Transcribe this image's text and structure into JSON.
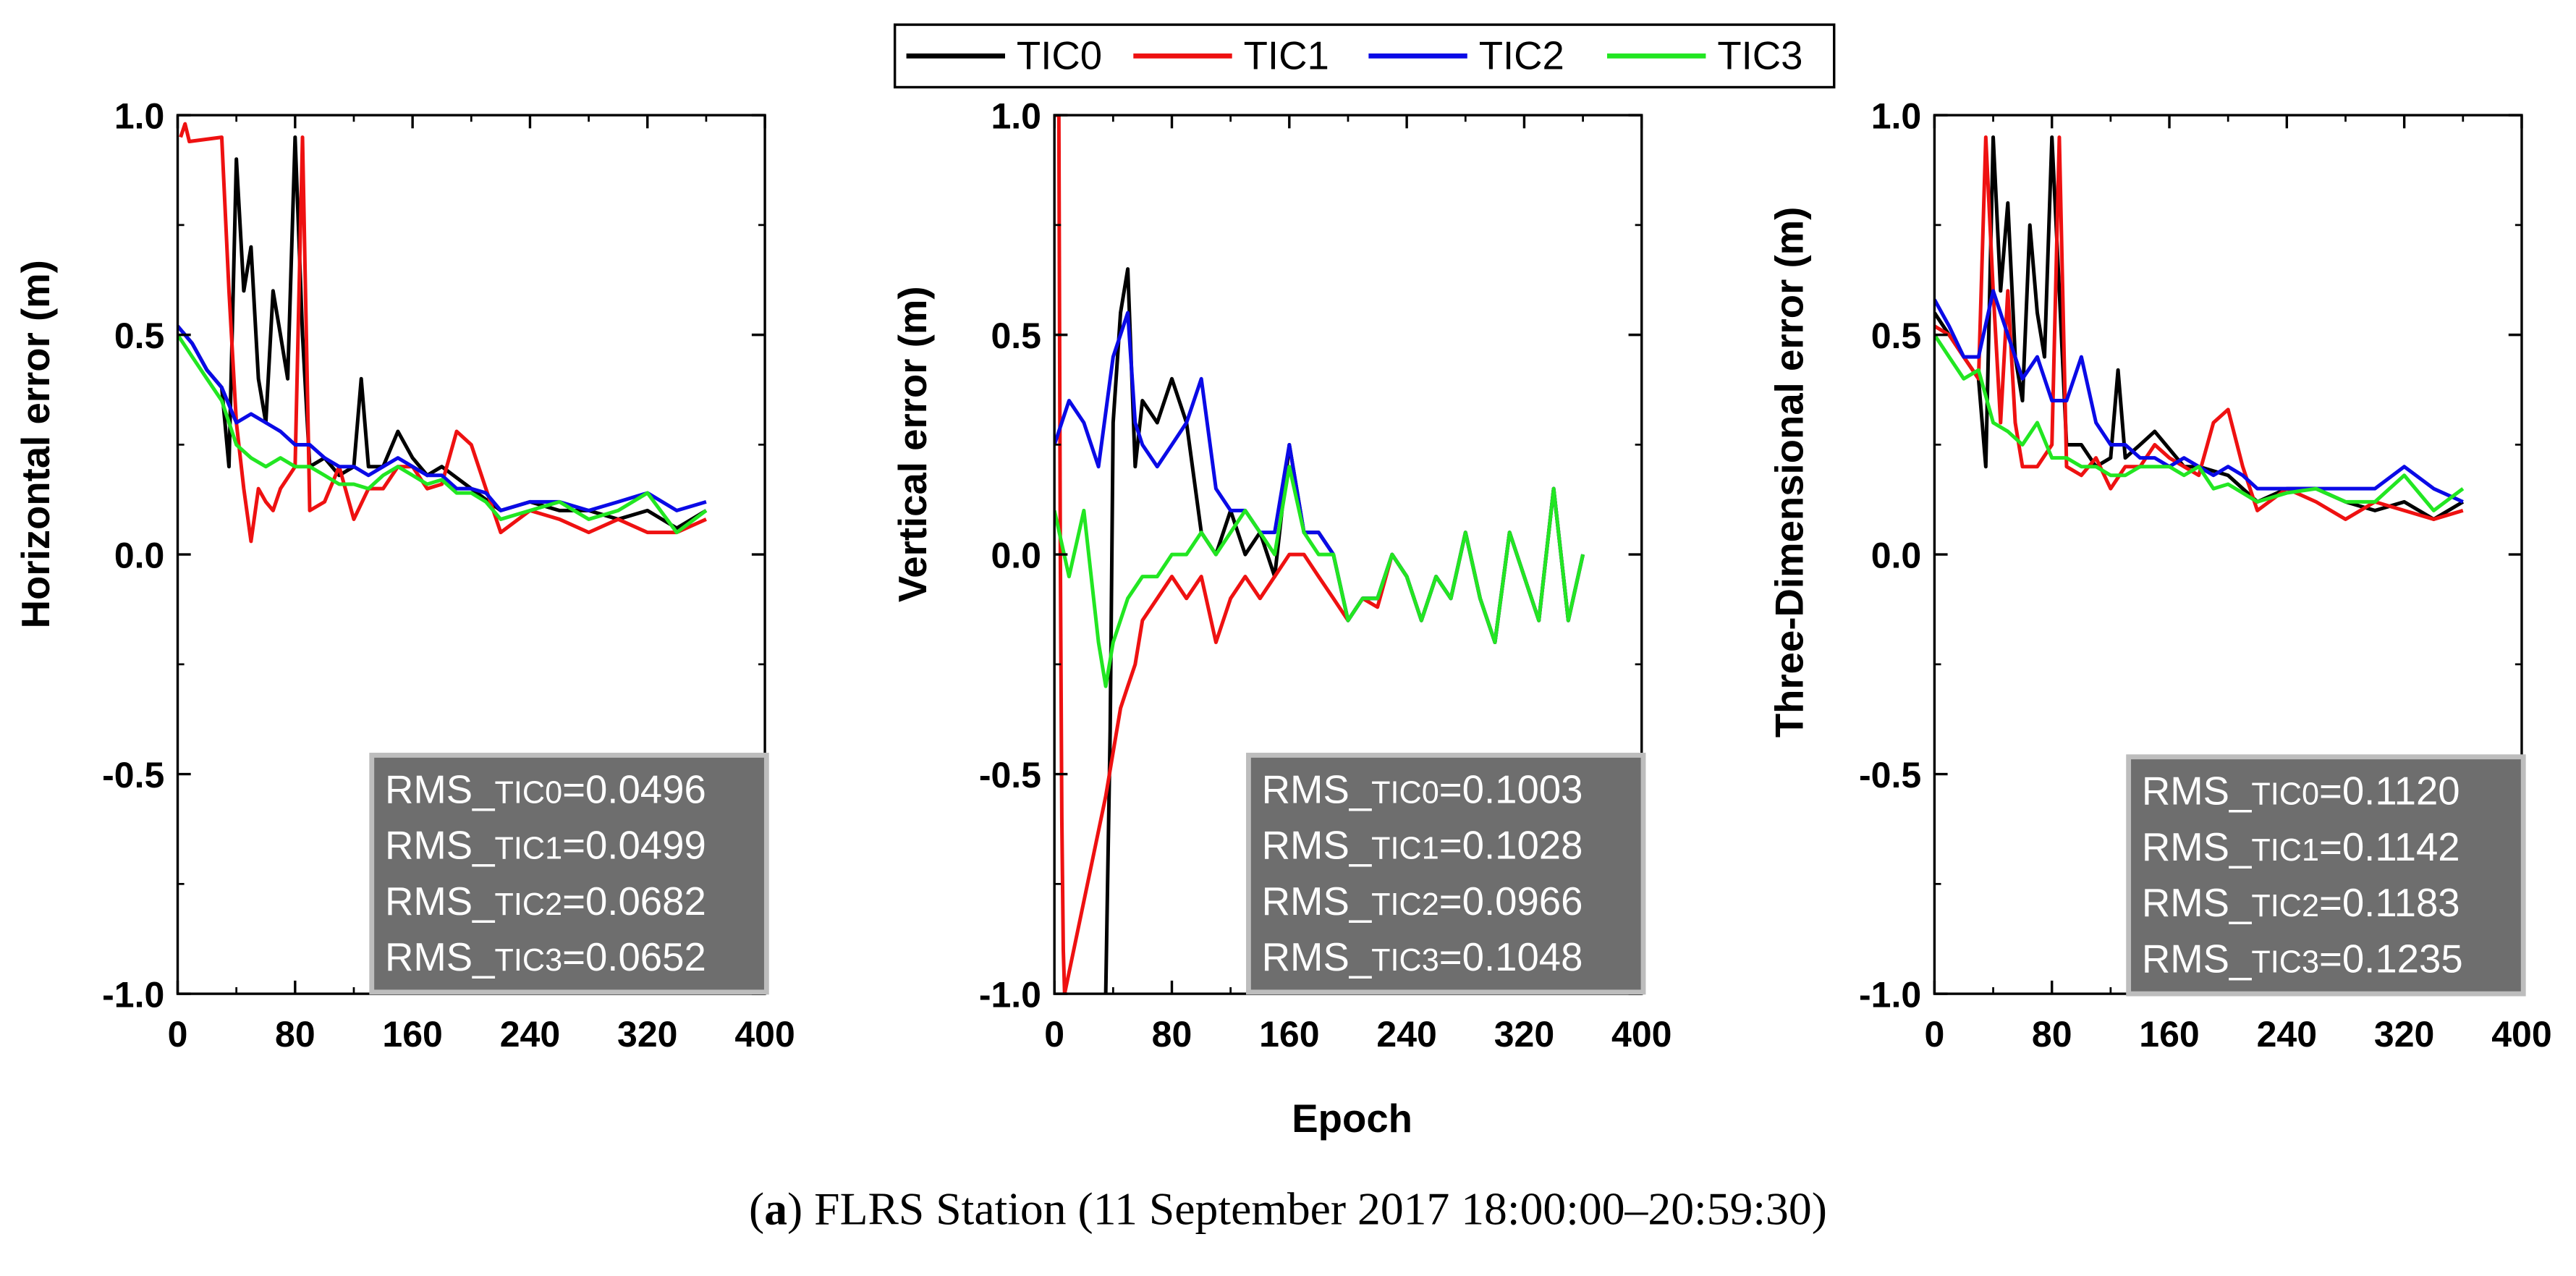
{
  "legend": [
    {
      "label": "TIC0",
      "color": "#000000"
    },
    {
      "label": "TIC1",
      "color": "#ee1111"
    },
    {
      "label": "TIC2",
      "color": "#0a0ae6"
    },
    {
      "label": "TIC3",
      "color": "#22e622"
    }
  ],
  "shared_xlabel": "Epoch",
  "caption": {
    "tag": "a",
    "text": "FLRS Station (11 September 2017 18:00:00–20:59:30)"
  },
  "chart_data": [
    {
      "type": "line",
      "ylabel": "Horizontal error (m)",
      "xlim": [
        0,
        400
      ],
      "ylim": [
        -1.0,
        1.0
      ],
      "xticks": [
        0,
        80,
        160,
        240,
        320,
        400
      ],
      "xtick_labels": [
        "0",
        "80",
        "160",
        "240",
        "320",
        "400"
      ],
      "yticks": [
        1.0,
        0.5,
        0.0,
        -0.5,
        -1.0
      ],
      "ytick_labels": [
        "1.0",
        "0.5",
        "0.0",
        "-0.5",
        "-1.0"
      ],
      "rms": [
        {
          "prefix": "RMS_",
          "sub": "TIC0",
          "value": "=0.0496"
        },
        {
          "prefix": "RMS_",
          "sub": "TIC1",
          "value": "=0.0499"
        },
        {
          "prefix": "RMS_",
          "sub": "TIC2",
          "value": "=0.0682"
        },
        {
          "prefix": "RMS_",
          "sub": "TIC3",
          "value": "=0.0652"
        }
      ],
      "series": [
        {
          "name": "TIC0",
          "x": [
            0,
            10,
            20,
            30,
            35,
            40,
            45,
            50,
            55,
            60,
            65,
            70,
            75,
            80,
            85,
            90,
            100,
            110,
            120,
            125,
            130,
            140,
            150,
            160,
            170,
            180,
            200,
            220,
            240,
            260,
            280,
            300,
            320,
            340,
            360
          ],
          "y": [
            0.52,
            0.48,
            0.42,
            0.38,
            0.2,
            0.9,
            0.6,
            0.7,
            0.4,
            0.3,
            0.6,
            0.5,
            0.4,
            0.95,
            0.5,
            0.2,
            0.22,
            0.18,
            0.2,
            0.4,
            0.2,
            0.2,
            0.28,
            0.22,
            0.18,
            0.2,
            0.15,
            0.1,
            0.12,
            0.1,
            0.1,
            0.08,
            0.1,
            0.06,
            0.1
          ]
        },
        {
          "name": "TIC1",
          "x": [
            2,
            5,
            8,
            30,
            35,
            40,
            45,
            50,
            55,
            60,
            65,
            70,
            80,
            85,
            90,
            100,
            110,
            120,
            130,
            140,
            150,
            160,
            170,
            180,
            190,
            200,
            210,
            220,
            240,
            260,
            280,
            300,
            320,
            340,
            360
          ],
          "y": [
            0.95,
            0.98,
            0.94,
            0.95,
            0.6,
            0.3,
            0.15,
            0.03,
            0.15,
            0.12,
            0.1,
            0.15,
            0.2,
            0.95,
            0.1,
            0.12,
            0.2,
            0.08,
            0.15,
            0.15,
            0.2,
            0.2,
            0.15,
            0.16,
            0.28,
            0.25,
            0.15,
            0.05,
            0.1,
            0.08,
            0.05,
            0.08,
            0.05,
            0.05,
            0.08
          ]
        },
        {
          "name": "TIC2",
          "x": [
            0,
            10,
            20,
            30,
            40,
            50,
            60,
            70,
            80,
            90,
            100,
            110,
            120,
            130,
            140,
            150,
            160,
            170,
            180,
            190,
            200,
            210,
            220,
            240,
            260,
            280,
            300,
            320,
            340,
            360
          ],
          "y": [
            0.52,
            0.48,
            0.42,
            0.38,
            0.3,
            0.32,
            0.3,
            0.28,
            0.25,
            0.25,
            0.22,
            0.2,
            0.2,
            0.18,
            0.2,
            0.22,
            0.2,
            0.18,
            0.18,
            0.15,
            0.15,
            0.14,
            0.1,
            0.12,
            0.12,
            0.1,
            0.12,
            0.14,
            0.1,
            0.12
          ]
        },
        {
          "name": "TIC3",
          "x": [
            0,
            10,
            20,
            30,
            40,
            50,
            60,
            70,
            80,
            90,
            100,
            110,
            120,
            130,
            140,
            150,
            160,
            170,
            180,
            190,
            200,
            210,
            220,
            240,
            260,
            280,
            300,
            320,
            340,
            360
          ],
          "y": [
            0.5,
            0.45,
            0.4,
            0.35,
            0.25,
            0.22,
            0.2,
            0.22,
            0.2,
            0.2,
            0.18,
            0.16,
            0.16,
            0.15,
            0.18,
            0.2,
            0.18,
            0.16,
            0.17,
            0.14,
            0.14,
            0.12,
            0.08,
            0.1,
            0.12,
            0.08,
            0.1,
            0.14,
            0.05,
            0.1
          ]
        }
      ]
    },
    {
      "type": "line",
      "ylabel": "Vertical error (m)",
      "xlim": [
        0,
        400
      ],
      "ylim": [
        -1.0,
        1.0
      ],
      "xticks": [
        0,
        80,
        160,
        240,
        320,
        400
      ],
      "xtick_labels": [
        "0",
        "80",
        "160",
        "240",
        "320",
        "400"
      ],
      "yticks": [
        1.0,
        0.5,
        0.0,
        -0.5,
        -1.0
      ],
      "ytick_labels": [
        "1.0",
        "0.5",
        "0.0",
        "-0.5",
        "-1.0"
      ],
      "rms": [
        {
          "prefix": "RMS_",
          "sub": "TIC0",
          "value": "=0.1003"
        },
        {
          "prefix": "RMS_",
          "sub": "TIC1",
          "value": "=0.1028"
        },
        {
          "prefix": "RMS_",
          "sub": "TIC2",
          "value": "=0.0966"
        },
        {
          "prefix": "RMS_",
          "sub": "TIC3",
          "value": "=0.1048"
        }
      ],
      "series": [
        {
          "name": "TIC0",
          "x": [
            35,
            38,
            40,
            45,
            50,
            55,
            60,
            70,
            80,
            90,
            100,
            110,
            120,
            130,
            140,
            150,
            160,
            170,
            180,
            190,
            200,
            210,
            220,
            230,
            240,
            250,
            260,
            270,
            280,
            290,
            300,
            310,
            320,
            330,
            340,
            350,
            360
          ],
          "y": [
            -1.0,
            -0.4,
            0.3,
            0.55,
            0.65,
            0.2,
            0.35,
            0.3,
            0.4,
            0.3,
            0.05,
            0.0,
            0.1,
            0.0,
            0.05,
            -0.05,
            0.25,
            0.05,
            0.05,
            0.0,
            -0.15,
            -0.1,
            -0.1,
            0.0,
            -0.05,
            -0.15,
            -0.05,
            -0.1,
            0.05,
            -0.1,
            -0.2,
            0.05,
            -0.05,
            -0.15,
            0.15,
            -0.15,
            0.0
          ]
        },
        {
          "name": "TIC1",
          "x": [
            0,
            3,
            4,
            5,
            6,
            7,
            35,
            40,
            45,
            50,
            55,
            60,
            70,
            80,
            90,
            100,
            110,
            120,
            130,
            140,
            150,
            160,
            170,
            180,
            190,
            200,
            210,
            220,
            230,
            240,
            250,
            260,
            270,
            280,
            290,
            300,
            310,
            320,
            330,
            340,
            350,
            360
          ],
          "y": [
            1.0,
            1.0,
            0.0,
            -0.6,
            -0.9,
            -1.0,
            -0.55,
            -0.45,
            -0.35,
            -0.3,
            -0.25,
            -0.15,
            -0.1,
            -0.05,
            -0.1,
            -0.05,
            -0.2,
            -0.1,
            -0.05,
            -0.1,
            -0.05,
            0.0,
            0.0,
            -0.05,
            -0.1,
            -0.15,
            -0.1,
            -0.12,
            0.0,
            -0.05,
            -0.15,
            -0.05,
            -0.1,
            0.05,
            -0.1,
            -0.2,
            0.05,
            -0.05,
            -0.15,
            0.15,
            -0.15,
            0.0
          ]
        },
        {
          "name": "TIC2",
          "x": [
            0,
            10,
            20,
            30,
            40,
            50,
            55,
            60,
            70,
            80,
            90,
            100,
            110,
            120,
            130,
            140,
            150,
            160,
            170,
            180,
            190,
            200,
            210,
            220,
            230,
            240,
            250,
            260,
            270,
            280,
            290,
            300,
            310,
            320,
            330,
            340,
            350,
            360
          ],
          "y": [
            0.25,
            0.35,
            0.3,
            0.2,
            0.45,
            0.55,
            0.3,
            0.25,
            0.2,
            0.25,
            0.3,
            0.4,
            0.15,
            0.1,
            0.1,
            0.05,
            0.05,
            0.25,
            0.05,
            0.05,
            0.0,
            -0.15,
            -0.1,
            -0.1,
            0.0,
            -0.05,
            -0.15,
            -0.05,
            -0.1,
            0.05,
            -0.1,
            -0.2,
            0.05,
            -0.05,
            -0.15,
            0.15,
            -0.15,
            0.0
          ]
        },
        {
          "name": "TIC3",
          "x": [
            0,
            10,
            20,
            30,
            35,
            40,
            50,
            60,
            70,
            80,
            90,
            100,
            110,
            120,
            130,
            140,
            150,
            160,
            170,
            180,
            190,
            200,
            210,
            220,
            230,
            240,
            250,
            260,
            270,
            280,
            290,
            300,
            310,
            320,
            330,
            340,
            350,
            360
          ],
          "y": [
            0.1,
            -0.05,
            0.1,
            -0.2,
            -0.3,
            -0.2,
            -0.1,
            -0.05,
            -0.05,
            0.0,
            0.0,
            0.05,
            0.0,
            0.05,
            0.1,
            0.05,
            0.0,
            0.2,
            0.05,
            0.0,
            0.0,
            -0.15,
            -0.1,
            -0.1,
            0.0,
            -0.05,
            -0.15,
            -0.05,
            -0.1,
            0.05,
            -0.1,
            -0.2,
            0.05,
            -0.05,
            -0.15,
            0.15,
            -0.15,
            0.0
          ]
        }
      ]
    },
    {
      "type": "line",
      "ylabel": "Three-Dimensional error (m)",
      "xlim": [
        0,
        400
      ],
      "ylim": [
        -1.0,
        1.0
      ],
      "xticks": [
        0,
        80,
        160,
        240,
        320,
        400
      ],
      "xtick_labels": [
        "0",
        "80",
        "160",
        "240",
        "320",
        "400"
      ],
      "yticks": [
        1.0,
        0.5,
        0.0,
        -0.5,
        -1.0
      ],
      "ytick_labels": [
        "1.0",
        "0.5",
        "0.0",
        "-0.5",
        "-1.0"
      ],
      "rms": [
        {
          "prefix": "RMS_",
          "sub": "TIC0",
          "value": "=0.1120"
        },
        {
          "prefix": "RMS_",
          "sub": "TIC1",
          "value": "=0.1142"
        },
        {
          "prefix": "RMS_",
          "sub": "TIC2",
          "value": "=0.1183"
        },
        {
          "prefix": "RMS_",
          "sub": "TIC3",
          "value": "=0.1235"
        }
      ],
      "series": [
        {
          "name": "TIC0",
          "x": [
            0,
            10,
            20,
            30,
            35,
            40,
            45,
            50,
            55,
            60,
            65,
            70,
            75,
            80,
            85,
            90,
            100,
            110,
            120,
            125,
            130,
            140,
            150,
            160,
            170,
            180,
            200,
            220,
            240,
            260,
            280,
            300,
            320,
            340,
            360
          ],
          "y": [
            0.55,
            0.5,
            0.45,
            0.4,
            0.2,
            0.95,
            0.6,
            0.8,
            0.45,
            0.35,
            0.75,
            0.55,
            0.45,
            0.95,
            0.6,
            0.25,
            0.25,
            0.2,
            0.22,
            0.42,
            0.22,
            0.25,
            0.28,
            0.24,
            0.2,
            0.2,
            0.18,
            0.12,
            0.15,
            0.15,
            0.12,
            0.1,
            0.12,
            0.08,
            0.12
          ]
        },
        {
          "name": "TIC1",
          "x": [
            0,
            10,
            20,
            30,
            35,
            40,
            45,
            50,
            55,
            60,
            70,
            80,
            85,
            90,
            100,
            110,
            120,
            130,
            140,
            150,
            160,
            170,
            180,
            190,
            200,
            210,
            220,
            240,
            260,
            280,
            300,
            320,
            340,
            360
          ],
          "y": [
            0.52,
            0.5,
            0.45,
            0.4,
            0.95,
            0.6,
            0.3,
            0.6,
            0.3,
            0.2,
            0.2,
            0.25,
            0.95,
            0.2,
            0.18,
            0.22,
            0.15,
            0.2,
            0.2,
            0.25,
            0.22,
            0.2,
            0.18,
            0.3,
            0.33,
            0.2,
            0.1,
            0.15,
            0.12,
            0.08,
            0.12,
            0.1,
            0.08,
            0.1
          ]
        },
        {
          "name": "TIC2",
          "x": [
            0,
            10,
            20,
            30,
            40,
            50,
            60,
            70,
            80,
            90,
            100,
            110,
            120,
            130,
            140,
            150,
            160,
            170,
            180,
            190,
            200,
            210,
            220,
            240,
            260,
            280,
            300,
            320,
            340,
            360
          ],
          "y": [
            0.58,
            0.52,
            0.45,
            0.45,
            0.6,
            0.5,
            0.4,
            0.45,
            0.35,
            0.35,
            0.45,
            0.3,
            0.25,
            0.25,
            0.22,
            0.22,
            0.2,
            0.22,
            0.2,
            0.18,
            0.2,
            0.18,
            0.15,
            0.15,
            0.15,
            0.15,
            0.15,
            0.2,
            0.15,
            0.12
          ]
        },
        {
          "name": "TIC3",
          "x": [
            0,
            10,
            20,
            30,
            40,
            50,
            60,
            70,
            80,
            90,
            100,
            110,
            120,
            130,
            140,
            150,
            160,
            170,
            180,
            190,
            200,
            210,
            220,
            240,
            260,
            280,
            300,
            320,
            340,
            360
          ],
          "y": [
            0.5,
            0.45,
            0.4,
            0.42,
            0.3,
            0.28,
            0.25,
            0.3,
            0.22,
            0.22,
            0.2,
            0.2,
            0.18,
            0.18,
            0.2,
            0.2,
            0.2,
            0.18,
            0.2,
            0.15,
            0.16,
            0.14,
            0.12,
            0.14,
            0.15,
            0.12,
            0.12,
            0.18,
            0.1,
            0.15
          ]
        }
      ]
    }
  ]
}
